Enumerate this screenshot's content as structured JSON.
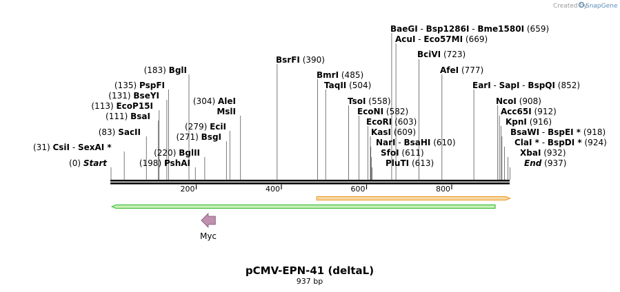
{
  "credit": {
    "text": "Created by",
    "brand": "SnapGene"
  },
  "title": "pCMV-EPN-41 (deltaL)",
  "length_label": "937 bp",
  "colors": {
    "backbone": "#000000",
    "orange_feature": "#f0a030",
    "green_feature": "#44c040",
    "myc": "#c090b0"
  },
  "ticks": [
    "200",
    "400",
    "600",
    "800"
  ],
  "features": [
    {
      "name": "",
      "start": 483,
      "end": 937,
      "direction": "right",
      "color": "orange"
    },
    {
      "name": "",
      "start": 2,
      "end": 902,
      "direction": "left",
      "color": "green"
    },
    {
      "name": "Myc",
      "start": 212,
      "end": 245,
      "direction": "left",
      "color": "myc"
    }
  ],
  "sites": [
    {
      "names": [
        "BaeGI",
        "Bsp1286I",
        "Bme1580I"
      ],
      "pos": "(659)",
      "bp": 659
    },
    {
      "names": [
        "AcuI",
        "Eco57MI"
      ],
      "pos": "(669)",
      "bp": 669
    },
    {
      "names": [
        "BciVI"
      ],
      "pos": "(723)",
      "bp": 723
    },
    {
      "names": [
        "AfeI"
      ],
      "pos": "(777)",
      "bp": 777
    },
    {
      "names": [
        "EarI",
        "SapI",
        "BspQI"
      ],
      "pos": "(852)",
      "bp": 852
    },
    {
      "names": [
        "NcoI"
      ],
      "pos": "(908)",
      "bp": 908
    },
    {
      "names": [
        "Acc65I"
      ],
      "pos": "(912)",
      "bp": 912
    },
    {
      "names": [
        "KpnI"
      ],
      "pos": "(916)",
      "bp": 916
    },
    {
      "names": [
        "BsaWI",
        "BspEI *"
      ],
      "pos": "(918)",
      "bp": 918
    },
    {
      "names": [
        "ClaI *",
        "BspDI *"
      ],
      "pos": "(924)",
      "bp": 924
    },
    {
      "names": [
        "XbaI"
      ],
      "pos": "(932)",
      "bp": 932
    },
    {
      "names": [
        "End"
      ],
      "pos": "(937)",
      "bp": 937
    },
    {
      "names": [
        "BsrFI"
      ],
      "pos": "(390)",
      "bp": 390
    },
    {
      "names": [
        "BmrI"
      ],
      "pos": "(485)",
      "bp": 485
    },
    {
      "names": [
        "TaqII"
      ],
      "pos": "(504)",
      "bp": 504
    },
    {
      "names": [
        "TsoI"
      ],
      "pos": "(558)",
      "bp": 558
    },
    {
      "names": [
        "EcoNI"
      ],
      "pos": "(582)",
      "bp": 582
    },
    {
      "names": [
        "EcoRI"
      ],
      "pos": "(603)",
      "bp": 603
    },
    {
      "names": [
        "KasI"
      ],
      "pos": "(609)",
      "bp": 609
    },
    {
      "names": [
        "NarI",
        "BsaHI"
      ],
      "pos": "(610)",
      "bp": 610
    },
    {
      "names": [
        "SfoI"
      ],
      "pos": "(611)",
      "bp": 611
    },
    {
      "names": [
        "PluTI"
      ],
      "pos": "(613)",
      "bp": 613
    },
    {
      "names": [
        "BglI"
      ],
      "pos": "(183)",
      "bp": 183
    },
    {
      "names": [
        "PspFI"
      ],
      "pos": "(135)",
      "bp": 135
    },
    {
      "names": [
        "BseYI"
      ],
      "pos": "(131)",
      "bp": 131
    },
    {
      "names": [
        "EcoP15I"
      ],
      "pos": "(113)",
      "bp": 113
    },
    {
      "names": [
        "BsaI"
      ],
      "pos": "(111)",
      "bp": 111
    },
    {
      "names": [
        "SacII"
      ],
      "pos": "(83)",
      "bp": 83
    },
    {
      "names": [
        "CsiI",
        "SexAI *"
      ],
      "pos": "(31)",
      "bp": 31
    },
    {
      "names": [
        "Start"
      ],
      "pos": "(0)",
      "bp": 0
    },
    {
      "names": [
        "AleI",
        "MslI"
      ],
      "pos": "(304)",
      "bp": 304
    },
    {
      "names": [
        "EciI"
      ],
      "pos": "(279)",
      "bp": 279
    },
    {
      "names": [
        "BsgI"
      ],
      "pos": "(271)",
      "bp": 271
    },
    {
      "names": [
        "BglII"
      ],
      "pos": "(220)",
      "bp": 220
    },
    {
      "names": [
        "PshAI"
      ],
      "pos": "(198)",
      "bp": 198
    }
  ]
}
